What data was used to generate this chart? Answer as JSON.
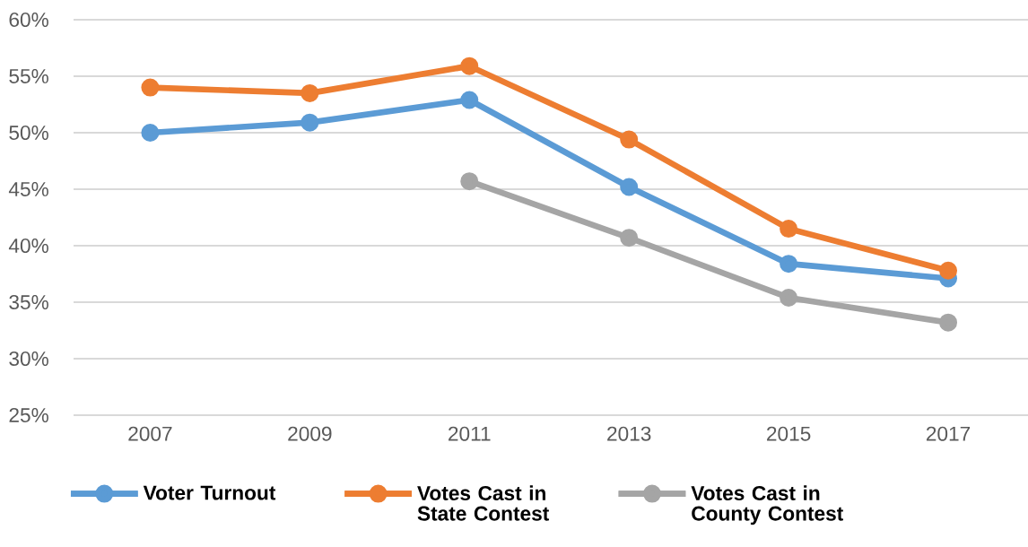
{
  "chart_data": {
    "type": "line",
    "categories": [
      "2007",
      "2009",
      "2011",
      "2013",
      "2015",
      "2017"
    ],
    "series": [
      {
        "name": "Voter Turnout",
        "color": "#5b9bd5",
        "values": [
          50.0,
          50.9,
          52.9,
          45.2,
          38.4,
          37.1
        ]
      },
      {
        "name": "Votes Cast in State Contest",
        "color": "#ed7d31",
        "values": [
          54.0,
          53.5,
          55.9,
          49.4,
          41.5,
          37.8
        ]
      },
      {
        "name": "Votes Cast in County Contest",
        "color": "#a5a5a5",
        "values": [
          null,
          null,
          45.7,
          40.7,
          35.4,
          33.2
        ]
      }
    ],
    "ylim": [
      25,
      60
    ],
    "yticks": [
      {
        "value": 25,
        "label": "25%"
      },
      {
        "value": 30,
        "label": "30%"
      },
      {
        "value": 35,
        "label": "35%"
      },
      {
        "value": 40,
        "label": "40%"
      },
      {
        "value": 45,
        "label": "45%"
      },
      {
        "value": 50,
        "label": "50%"
      },
      {
        "value": 55,
        "label": "55%"
      },
      {
        "value": 60,
        "label": "60%"
      }
    ],
    "grid": "y",
    "legend": "bottom",
    "marker": "circle",
    "line_style": "solid"
  }
}
